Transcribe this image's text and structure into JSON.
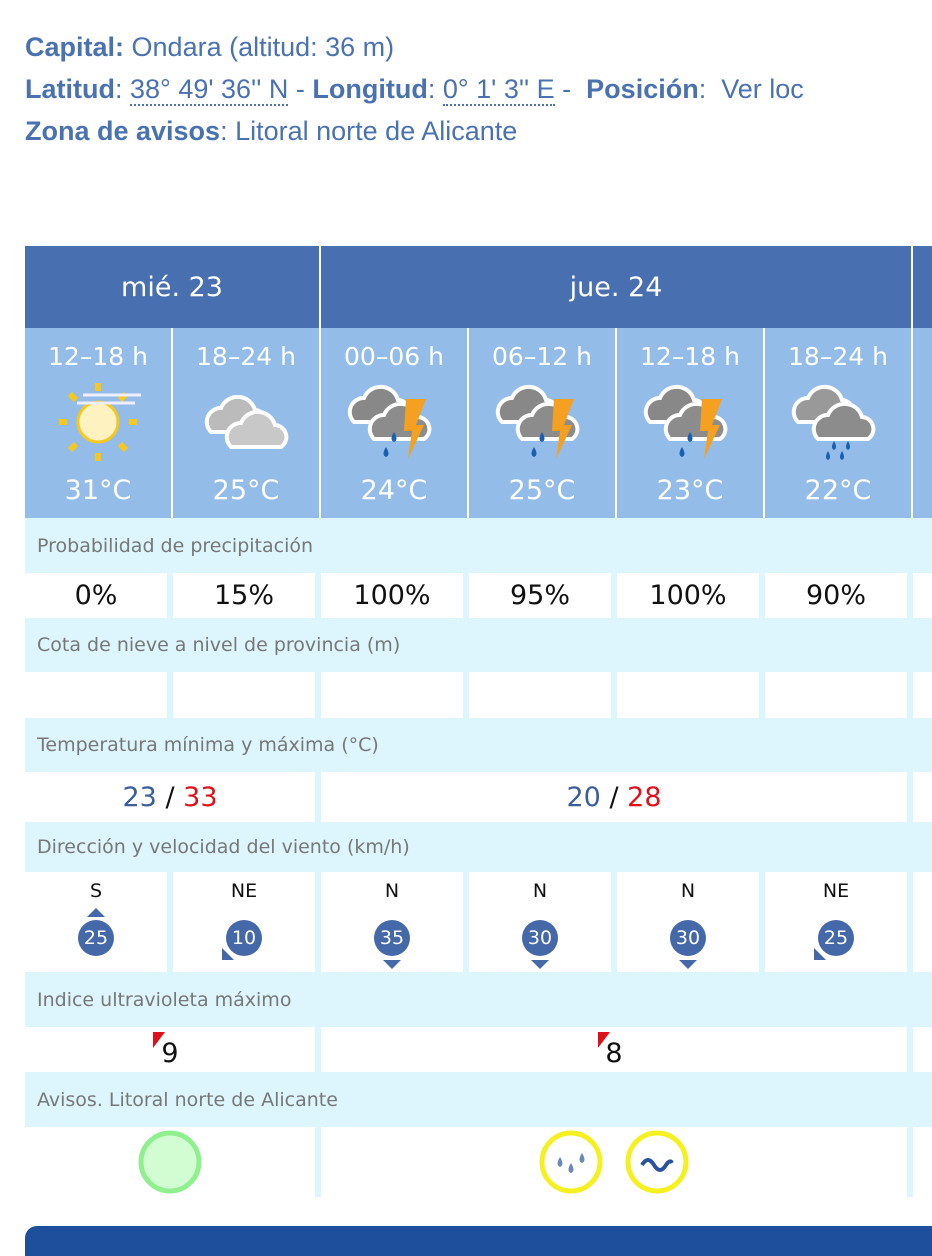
{
  "info": {
    "capital_label": "Capital:",
    "capital_value": "Ondara (altitud: 36 m)",
    "lat_label": "Latitud",
    "lat_value": "38° 49' 36'' N",
    "lon_label": "Longitud",
    "lon_value": "0° 1' 3'' E",
    "pos_label": "Posición",
    "pos_link": "Ver loc",
    "zona_label": "Zona de avisos",
    "zona_value": "Litoral norte de Alicante"
  },
  "days": [
    "mié. 23",
    "jue. 24"
  ],
  "periods": [
    {
      "hour": "12–18 h",
      "icon": "sun-haze-icon",
      "temp": "31°C"
    },
    {
      "hour": "18–24 h",
      "icon": "cloudy-icon",
      "temp": "25°C"
    },
    {
      "hour": "00–06 h",
      "icon": "storm-rain-icon",
      "temp": "24°C"
    },
    {
      "hour": "06–12 h",
      "icon": "storm-rain-icon",
      "temp": "25°C"
    },
    {
      "hour": "12–18 h",
      "icon": "storm-rain-icon",
      "temp": "23°C"
    },
    {
      "hour": "18–24 h",
      "icon": "cloud-rain-icon",
      "temp": "22°C"
    }
  ],
  "labels": {
    "precip": "Probabilidad de precipitación",
    "snow": "Cota de nieve a nivel de provincia (m)",
    "temp": "Temperatura mínima y máxima (°C)",
    "wind": "Dirección y velocidad del viento (km/h)",
    "uv": "Indice ultravioleta máximo",
    "avisos": "Avisos. Litoral norte de Alicante"
  },
  "precip": [
    "0%",
    "15%",
    "100%",
    "95%",
    "100%",
    "90%"
  ],
  "temps": [
    {
      "min": "23",
      "max": "33"
    },
    {
      "min": "20",
      "max": "28"
    }
  ],
  "temp_sep": "/",
  "wind": [
    {
      "dir": "S",
      "speed": "25"
    },
    {
      "dir": "NE",
      "speed": "10"
    },
    {
      "dir": "N",
      "speed": "35"
    },
    {
      "dir": "N",
      "speed": "30"
    },
    {
      "dir": "N",
      "speed": "30"
    },
    {
      "dir": "NE",
      "speed": "25"
    }
  ],
  "uv": [
    "9",
    "8"
  ],
  "avisos": [
    [
      "green-level-icon"
    ],
    [
      "yellow-rain-icon",
      "yellow-coastal-icon"
    ]
  ],
  "colors": {
    "header": "#4870b0",
    "period": "#94bce8",
    "label_bg": "#ddf6fd",
    "min": "#3a5e98",
    "max": "#e0101a"
  }
}
